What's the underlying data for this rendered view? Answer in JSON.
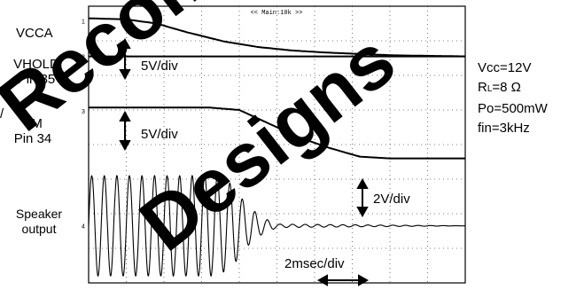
{
  "chart_data": {
    "type": "line",
    "title": "",
    "xlabel": "",
    "ylabel": "",
    "grid": true,
    "header_label": "<< Main:10k >>",
    "time_scale_label": "2msec/div",
    "divisions": {
      "x": 10,
      "y": 8
    },
    "channel_labels": {
      "vcca": "VCCA",
      "vhold": [
        "VHOLD",
        "Pin 35"
      ],
      "tm": [
        "TM",
        "Pin 34"
      ],
      "speaker": [
        "Speaker",
        "output"
      ],
      "stray_left": "/"
    },
    "scale_labels": [
      "5V/div",
      "5V/div",
      "2V/div"
    ],
    "marker_labels": [
      "1",
      "2",
      "3",
      "4"
    ],
    "series": [
      {
        "name": "VCCA",
        "x": [
          0,
          1.0,
          1.8,
          2.6,
          3.6,
          4.5,
          5.4,
          6.3,
          7.2,
          8.1,
          10
        ],
        "y": [
          7.65,
          7.62,
          7.5,
          7.25,
          6.98,
          6.82,
          6.72,
          6.66,
          6.62,
          6.58,
          6.55
        ]
      },
      {
        "name": "VHOLD Pin 35",
        "x": [
          0,
          10
        ],
        "y": [
          6.55,
          6.55
        ]
      },
      {
        "name": "TM Pin 34",
        "x": [
          0,
          3.2,
          4.0,
          4.8,
          5.6,
          6.4,
          7.2,
          8.0,
          10
        ],
        "y": [
          5.07,
          5.07,
          5.0,
          4.6,
          4.2,
          3.9,
          3.65,
          3.6,
          3.6
        ]
      },
      {
        "name": "Speaker output",
        "envelope": {
          "x": [
            0,
            3.4,
            3.8,
            4.2,
            4.6,
            5.0,
            10
          ],
          "amplitude_div": [
            1.45,
            1.45,
            1.2,
            0.6,
            0.25,
            0.05,
            0
          ],
          "baseline_div": 1.65,
          "cycles_per_div": 3.0
        }
      }
    ]
  },
  "right_panel": {
    "vcc": "Vcc=12V",
    "rl_prefix": "R",
    "rl_sub": "L",
    "rl_suffix": "=8 Ω",
    "po": "Po=500mW",
    "fin": "fin=3kHz"
  },
  "watermark": {
    "words": [
      "Recommende",
      "Designs"
    ],
    "color": "#000000"
  }
}
